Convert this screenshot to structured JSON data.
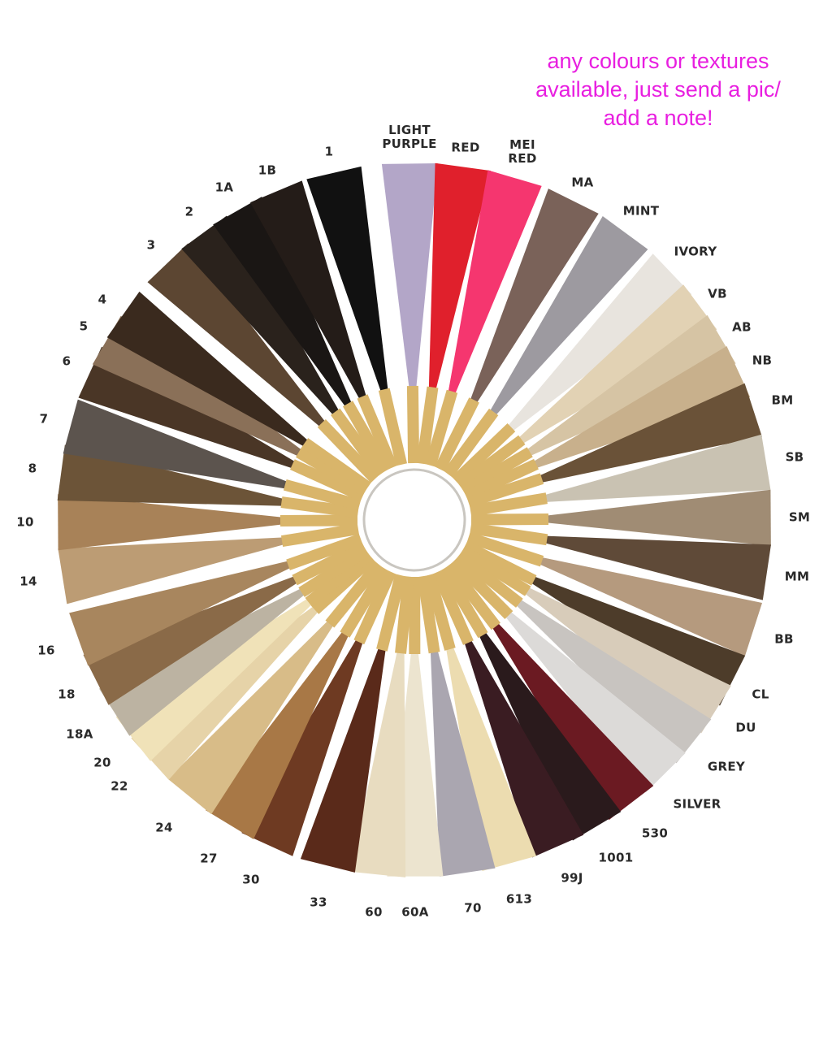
{
  "note": {
    "lines": [
      "any colours or textures",
      "available, just send a pic/",
      "add a note!"
    ],
    "color": "#e81ee0"
  },
  "shades": [
    {
      "label": "1",
      "color": "#111111"
    },
    {
      "label": "LIGHT PURPLE",
      "color": "#b3a6c8"
    },
    {
      "label": "RED",
      "color": "#e0202c"
    },
    {
      "label": "MEI RED",
      "color": "#f5366f"
    },
    {
      "label": "MA",
      "color": "#7a6259"
    },
    {
      "label": "MINT",
      "color": "#9d9aa0"
    },
    {
      "label": "IVORY",
      "color": "#e8e4de"
    },
    {
      "label": "VB",
      "color": "#e2d2b4"
    },
    {
      "label": "AB",
      "color": "#d6c4a4"
    },
    {
      "label": "NB",
      "color": "#c8b08c"
    },
    {
      "label": "BM",
      "color": "#6a5238"
    },
    {
      "label": "SB",
      "color": "#c9c2b2"
    },
    {
      "label": "SM",
      "color": "#a08c74"
    },
    {
      "label": "MM",
      "color": "#5f4a38"
    },
    {
      "label": "BB",
      "color": "#b59a7e"
    },
    {
      "label": "CL",
      "color": "#4d3c2a"
    },
    {
      "label": "DU",
      "color": "#d8ccba"
    },
    {
      "label": "GREY",
      "color": "#c8c4c0"
    },
    {
      "label": "SILVER",
      "color": "#dcdad8"
    },
    {
      "label": "530",
      "color": "#6b1a22"
    },
    {
      "label": "1001",
      "color": "#2a1a1c"
    },
    {
      "label": "99J",
      "color": "#3a1c22"
    },
    {
      "label": "613",
      "color": "#ecdcb0"
    },
    {
      "label": "70",
      "color": "#aaa6b0"
    },
    {
      "label": "60A",
      "color": "#ece4cf"
    },
    {
      "label": "60",
      "color": "#e8dcc0"
    },
    {
      "label": "33",
      "color": "#5a2a1a"
    },
    {
      "label": "30",
      "color": "#6e3a22"
    },
    {
      "label": "27",
      "color": "#a87846"
    },
    {
      "label": "24",
      "color": "#d8bc88"
    },
    {
      "label": "22",
      "color": "#e6d3a8"
    },
    {
      "label": "20",
      "color": "#f0e2b8"
    },
    {
      "label": "18A",
      "color": "#bcb3a2"
    },
    {
      "label": "18",
      "color": "#8a6a48"
    },
    {
      "label": "16",
      "color": "#a8865e"
    },
    {
      "label": "14",
      "color": "#bc9c74"
    },
    {
      "label": "10",
      "color": "#a88258"
    },
    {
      "label": "8",
      "color": "#6c5438"
    },
    {
      "label": "7",
      "color": "#5c544e"
    },
    {
      "label": "6",
      "color": "#4a3626"
    },
    {
      "label": "5",
      "color": "#8a7058"
    },
    {
      "label": "4",
      "color": "#3a2a1e"
    },
    {
      "label": "3",
      "color": "#5c4632"
    },
    {
      "label": "2",
      "color": "#2a221c"
    },
    {
      "label": "1A",
      "color": "#1a1614"
    },
    {
      "label": "1B",
      "color": "#241c18"
    }
  ],
  "tab_color": "#d9b56a"
}
